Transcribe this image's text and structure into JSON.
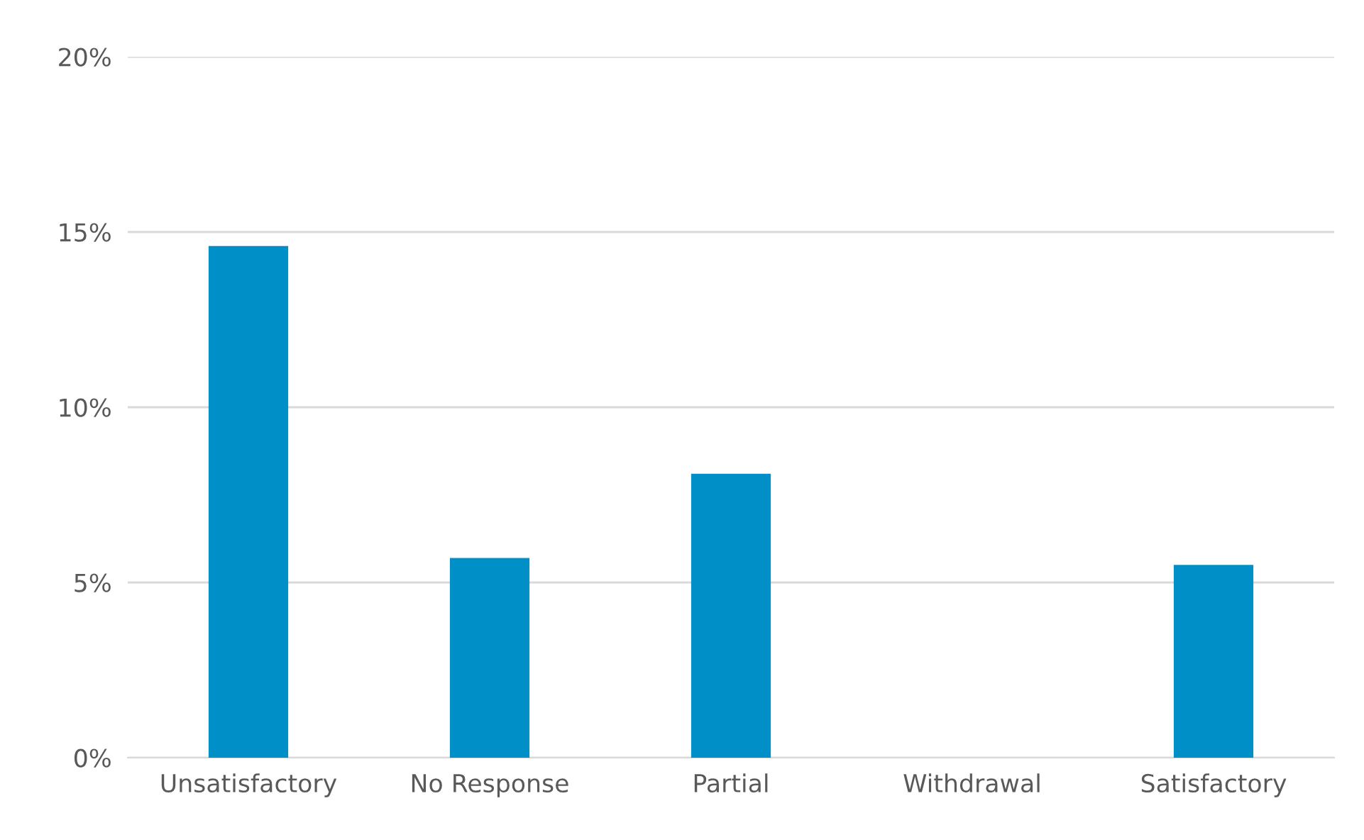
{
  "chart_data": {
    "type": "bar",
    "categories": [
      "Unsatisfactory",
      "No Response",
      "Partial",
      "Withdrawal",
      "Satisfactory"
    ],
    "values": [
      14.6,
      5.7,
      8.1,
      0,
      5.5
    ],
    "color": "#008fc7",
    "ylim": [
      0,
      20
    ],
    "yticks": [
      {
        "value": 0,
        "label": "0%"
      },
      {
        "value": 5,
        "label": "5%"
      },
      {
        "value": 10,
        "label": "10%"
      },
      {
        "value": 15,
        "label": "15%"
      },
      {
        "value": 20,
        "label": "20%"
      }
    ],
    "grid": "y"
  }
}
